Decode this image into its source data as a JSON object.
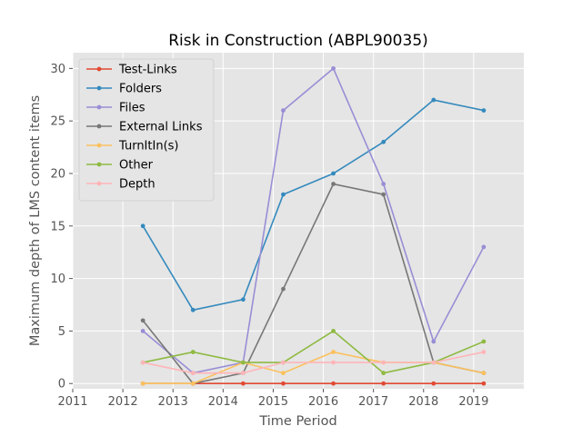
{
  "chart_data": {
    "type": "line",
    "title": "Risk in Construction (ABPL90035)",
    "xlabel": "Time Period",
    "ylabel": "Maximum depth of LMS content items",
    "xlim": [
      2011,
      2020
    ],
    "ylim": [
      -0.5,
      31.5
    ],
    "x_ticks": [
      2011,
      2012,
      2013,
      2014,
      2015,
      2016,
      2017,
      2018,
      2019
    ],
    "y_ticks": [
      0,
      5,
      10,
      15,
      20,
      25,
      30
    ],
    "grid": true,
    "legend_position": "upper-left",
    "x": [
      2012.4,
      2013.4,
      2014.4,
      2015.2,
      2016.2,
      2017.2,
      2018.2,
      2019.2
    ],
    "series": [
      {
        "name": "Test-Links",
        "color": "#E24A33",
        "values": [
          0,
          0,
          0,
          0,
          0,
          0,
          0,
          0
        ]
      },
      {
        "name": "Folders",
        "color": "#348ABD",
        "values": [
          15,
          7,
          8,
          18,
          20,
          23,
          27,
          26
        ]
      },
      {
        "name": "Files",
        "color": "#988ED5",
        "values": [
          5,
          1,
          2,
          26,
          30,
          19,
          4,
          13
        ]
      },
      {
        "name": "External Links",
        "color": "#777777",
        "values": [
          6,
          0,
          1,
          9,
          19,
          18,
          2,
          1
        ]
      },
      {
        "name": "TurnItIn(s)",
        "color": "#FBC15E",
        "values": [
          0,
          0,
          2,
          1,
          3,
          2,
          2,
          1
        ]
      },
      {
        "name": "Other",
        "color": "#8EBA42",
        "values": [
          2,
          3,
          2,
          2,
          5,
          1,
          2,
          4
        ]
      },
      {
        "name": "Depth",
        "color": "#FFB5B8",
        "values": [
          2,
          1,
          1,
          2,
          2,
          2,
          2,
          3
        ]
      }
    ]
  }
}
